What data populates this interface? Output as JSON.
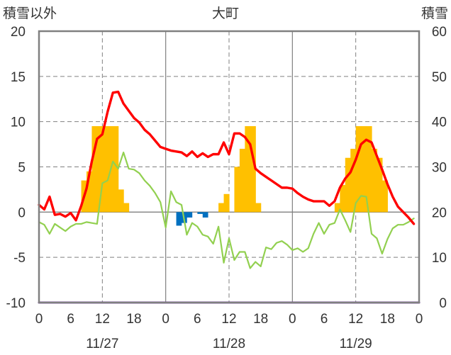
{
  "chart_data": {
    "type": "bar+line",
    "title": "大町",
    "left_axis_label": "積雪以外",
    "right_axis_label": "積雪",
    "left_ylim": [
      -10,
      20
    ],
    "left_yticks": [
      -10,
      -5,
      0,
      5,
      10,
      15,
      20
    ],
    "right_ylim": [
      0,
      60
    ],
    "right_yticks": [
      0,
      10,
      20,
      30,
      40,
      50,
      60
    ],
    "x_tick_labels": [
      "0",
      "6",
      "12",
      "18",
      "0",
      "6",
      "12",
      "18",
      "0",
      "6",
      "12",
      "18",
      "0"
    ],
    "date_labels": [
      "11/27",
      "11/28",
      "11/29"
    ],
    "colors": {
      "red_line": "#ff0000",
      "green_line": "#92d050",
      "orange_bars": "#ffc000",
      "blue_bars": "#0070c0",
      "purple_line": "#7030a0",
      "frame": "#808080"
    },
    "series": [
      {
        "color": "red",
        "type": "line",
        "axis": "left",
        "x": [
          0,
          1,
          2,
          3,
          4,
          5,
          6,
          7,
          8,
          9,
          10,
          11,
          12,
          13,
          14,
          15,
          16,
          17,
          18,
          19,
          20,
          21,
          22,
          23,
          24,
          25,
          26,
          27,
          28,
          29,
          30,
          31,
          32,
          33,
          34,
          35,
          36,
          37,
          38,
          39,
          40,
          41,
          42,
          43,
          44,
          45,
          46,
          47,
          48,
          49,
          50,
          51,
          52,
          53,
          54,
          55,
          56,
          57,
          58,
          59,
          60,
          61,
          62,
          63,
          64,
          65,
          66,
          67,
          68,
          69,
          70,
          71
        ],
        "values": [
          0.8,
          0.3,
          1.7,
          -0.3,
          -0.2,
          -0.5,
          -0.1,
          -0.9,
          0.7,
          2.6,
          5.6,
          8.1,
          8.6,
          11.1,
          13.2,
          13.3,
          12.0,
          11.2,
          10.4,
          9.9,
          9.1,
          8.6,
          7.9,
          7.2,
          7.0,
          6.8,
          6.7,
          6.6,
          6.2,
          6.7,
          6.1,
          6.5,
          6.1,
          6.4,
          6.4,
          7.7,
          6.4,
          8.7,
          8.7,
          8.3,
          7.5,
          4.8,
          4.3,
          3.9,
          3.5,
          3.1,
          2.7,
          2.7,
          2.6,
          2.1,
          1.7,
          1.4,
          1.2,
          1.2,
          1.2,
          0.7,
          1.2,
          2.7,
          3.7,
          4.4,
          5.8,
          7.5,
          8.0,
          7.7,
          6.2,
          4.7,
          3.1,
          1.7,
          0.6,
          0.0,
          -0.6,
          -1.3
        ]
      },
      {
        "color": "green",
        "type": "line",
        "axis": "left",
        "x": [
          0,
          1,
          2,
          3,
          4,
          5,
          6,
          7,
          8,
          9,
          10,
          11,
          12,
          13,
          14,
          15,
          16,
          17,
          18,
          19,
          20,
          21,
          22,
          23,
          24,
          25,
          26,
          27,
          28,
          29,
          30,
          31,
          32,
          33,
          34,
          35,
          36,
          37,
          38,
          39,
          40,
          41,
          42,
          43,
          44,
          45,
          46,
          47,
          48,
          49,
          50,
          51,
          52,
          53,
          54,
          55,
          56,
          57,
          58,
          59,
          60,
          61,
          62,
          63,
          64,
          65,
          66,
          67,
          68,
          69,
          70,
          71
        ],
        "values": [
          -1.1,
          -1.4,
          -2.4,
          -1.3,
          -1.7,
          -2.1,
          -1.6,
          -1.3,
          -1.3,
          -1.1,
          -1.2,
          -1.3,
          3.2,
          3.5,
          5.6,
          4.8,
          6.6,
          4.8,
          4.7,
          4.3,
          3.5,
          2.9,
          2.1,
          1.1,
          -1.7,
          2.3,
          1.1,
          0.8,
          -2.5,
          -1.2,
          -1.6,
          -2.5,
          -2.7,
          -3.5,
          -1.6,
          -5.6,
          -2.9,
          -5.3,
          -4.4,
          -4.4,
          -6.2,
          -5.5,
          -6.0,
          -3.9,
          -4.1,
          -3.4,
          -3.2,
          -3.6,
          -4.2,
          -4.0,
          -4.4,
          -4.0,
          -2.4,
          -1.2,
          -2.4,
          -1.4,
          -1.2,
          0.3,
          -0.9,
          -2.2,
          1.0,
          1.8,
          1.7,
          -2.4,
          -2.9,
          -4.6,
          -3.0,
          -1.8,
          -1.4,
          -1.4,
          -1.1,
          -0.7
        ]
      },
      {
        "color": "orange",
        "type": "bar",
        "axis": "right",
        "x": [
          8,
          9,
          10,
          11,
          12,
          13,
          14,
          15,
          16,
          34,
          35,
          36,
          37,
          38,
          39,
          40,
          41,
          56,
          57,
          58,
          59,
          60,
          61,
          62,
          63,
          64,
          65
        ],
        "values": [
          27,
          29,
          39,
          39,
          39,
          39,
          39,
          25,
          22,
          22,
          24,
          18,
          30,
          34,
          39,
          39,
          22,
          22,
          26,
          32,
          34,
          39,
          39,
          39,
          34,
          32,
          27
        ]
      },
      {
        "color": "blue",
        "type": "bar",
        "axis": "left",
        "x": [
          26,
          27,
          28,
          30,
          31
        ],
        "values": [
          -1.5,
          -1.2,
          -0.6,
          -0.2,
          -0.6
        ]
      },
      {
        "color": "purple",
        "type": "line",
        "axis": "left",
        "x": [
          0,
          72
        ],
        "values": [
          -10,
          -10
        ]
      }
    ]
  }
}
